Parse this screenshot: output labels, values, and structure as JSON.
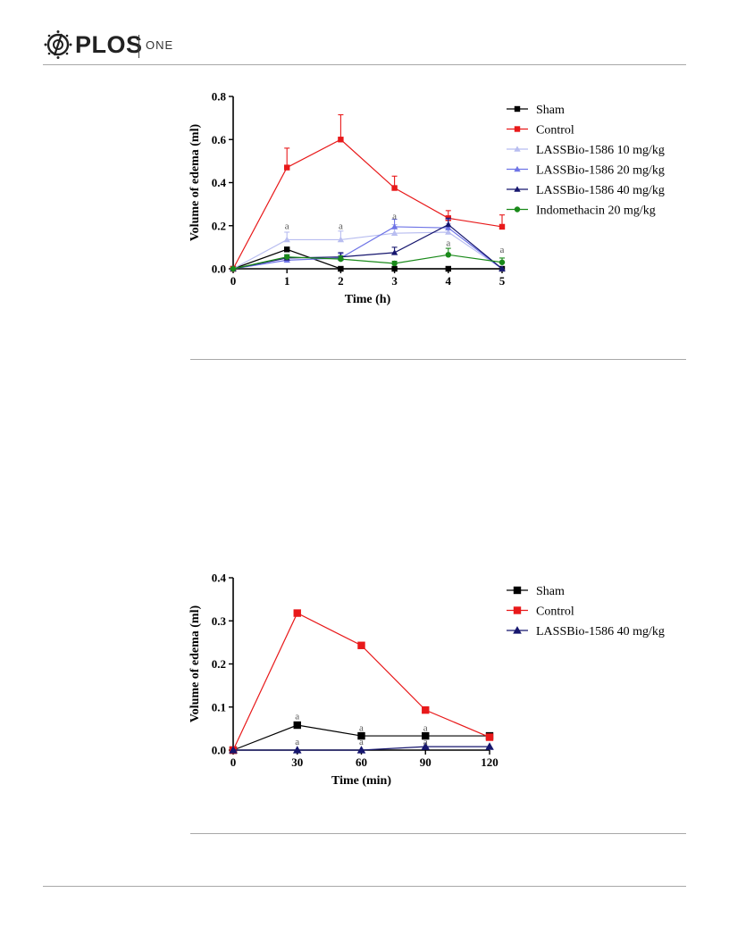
{
  "journal": {
    "name": "PLOS",
    "sub": "ONE"
  },
  "colors": {
    "sham": "#000000",
    "control": "#e8191a",
    "l10": "#b8bdf0",
    "l20": "#6e74e6",
    "l40": "#16166e",
    "indo": "#1a8a1a"
  },
  "chart_data": [
    {
      "type": "line",
      "title": "",
      "xlabel": "Time (h)",
      "ylabel": "Volume of edema (ml)",
      "x": [
        0,
        1,
        2,
        3,
        4,
        5
      ],
      "xticks": [
        "0",
        "1",
        "2",
        "3",
        "4",
        "5"
      ],
      "yticks": [
        "0.0",
        "0.2",
        "0.4",
        "0.6",
        "0.8"
      ],
      "xlim": [
        0,
        5
      ],
      "ylim": [
        0,
        0.8
      ],
      "legend_position": "right",
      "series": [
        {
          "name": "Sham",
          "marker": "square",
          "values": [
            0,
            0.09,
            0.0,
            0.0,
            0.0,
            0.0
          ],
          "err": [
            0,
            0,
            0,
            0,
            0,
            0
          ]
        },
        {
          "name": "Control",
          "marker": "square",
          "values": [
            0,
            0.47,
            0.6,
            0.375,
            0.235,
            0.195
          ],
          "err": [
            0,
            0.09,
            0.115,
            0.055,
            0.035,
            0.055
          ]
        },
        {
          "name": "LASSBio-1586 10 mg/kg",
          "marker": "triangle",
          "values": [
            0,
            0.135,
            0.135,
            0.165,
            0.17,
            0.0
          ],
          "err": [
            0,
            0.035,
            0.04,
            0.04,
            0.04,
            0
          ]
        },
        {
          "name": "LASSBio-1586 20 mg/kg",
          "marker": "triangle",
          "values": [
            0,
            0.04,
            0.05,
            0.195,
            0.19,
            0.0
          ],
          "err": [
            0,
            0.02,
            0.02,
            0.035,
            0.04,
            0
          ]
        },
        {
          "name": "LASSBio-1586 40 mg/kg",
          "marker": "triangle",
          "values": [
            0,
            0.05,
            0.055,
            0.075,
            0.205,
            0.0
          ],
          "err": [
            0,
            0.015,
            0.02,
            0.025,
            0.03,
            0
          ]
        },
        {
          "name": "Indomethacin 20 mg/kg",
          "marker": "circle",
          "values": [
            0,
            0.055,
            0.045,
            0.025,
            0.065,
            0.03
          ],
          "err": [
            0,
            0.01,
            0.015,
            0.01,
            0.03,
            0.02
          ]
        }
      ],
      "annotations": [
        {
          "text": "a",
          "x": 1,
          "y": 0.185
        },
        {
          "text": "a",
          "x": 2,
          "y": 0.185
        },
        {
          "text": "a",
          "x": 3,
          "y": 0.23
        },
        {
          "text": "a",
          "x": 4,
          "y": 0.105
        },
        {
          "text": "a",
          "x": 5,
          "y": 0.075
        }
      ]
    },
    {
      "type": "line",
      "title": "",
      "xlabel": "Time (min)",
      "ylabel": "Volume of edema (ml)",
      "x": [
        0,
        30,
        60,
        90,
        120
      ],
      "xticks": [
        "0",
        "30",
        "60",
        "90",
        "120"
      ],
      "yticks": [
        "0.0",
        "0.1",
        "0.2",
        "0.3",
        "0.4"
      ],
      "xlim": [
        0,
        120
      ],
      "ylim": [
        0,
        0.4
      ],
      "legend_position": "right",
      "series": [
        {
          "name": "Sham",
          "marker": "square",
          "values": [
            0,
            0.058,
            0.033,
            0.033,
            0.033
          ],
          "err": [
            0,
            0,
            0,
            0,
            0
          ]
        },
        {
          "name": "Control",
          "marker": "square",
          "values": [
            0,
            0.318,
            0.243,
            0.093,
            0.03
          ],
          "err": [
            0,
            0,
            0,
            0,
            0
          ]
        },
        {
          "name": "LASSBio-1586 40 mg/kg",
          "marker": "triangle",
          "values": [
            0,
            0.0,
            0.0,
            0.008,
            0.008
          ],
          "err": [
            0,
            0,
            0,
            0,
            0
          ]
        }
      ],
      "annotations": [
        {
          "text": "a",
          "x": 30,
          "y": 0.012
        },
        {
          "text": "a",
          "x": 60,
          "y": 0.045
        },
        {
          "text": "a",
          "x": 60,
          "y": 0.012
        },
        {
          "text": "a",
          "x": 90,
          "y": 0.045
        },
        {
          "text": "a",
          "x": 90,
          "y": 0.012
        },
        {
          "text": "a",
          "x": 30,
          "y": 0.072
        }
      ]
    }
  ]
}
